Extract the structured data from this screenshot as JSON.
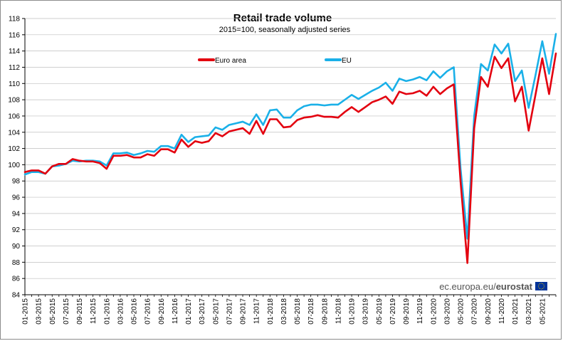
{
  "chart_data": {
    "type": "line",
    "title": "Retail trade volume",
    "subtitle": "2015=100, seasonally adjusted series",
    "xlabel": "",
    "ylabel": "",
    "ylim": [
      84,
      118
    ],
    "yticks": [
      84,
      86,
      88,
      90,
      92,
      94,
      96,
      98,
      100,
      102,
      104,
      106,
      108,
      110,
      112,
      114,
      116,
      118
    ],
    "tick_labels": [
      "01-2015",
      "03-2015",
      "05-2015",
      "07-2015",
      "09-2015",
      "11-2015",
      "01-2016",
      "03-2016",
      "05-2016",
      "07-2016",
      "09-2016",
      "11-2016",
      "01-2017",
      "03-2017",
      "05-2017",
      "07-2017",
      "09-2017",
      "11-2017",
      "01-2018",
      "03-2018",
      "05-2018",
      "07-2018",
      "09-2018",
      "11-2018",
      "01-2019",
      "03-2019",
      "05-2019",
      "07-2019",
      "09-2019",
      "11-2019",
      "01-2020",
      "03-2020",
      "05-2020",
      "07-2020",
      "09-2020",
      "11-2020",
      "01-2021",
      "03-2021",
      "05-2021"
    ],
    "legend_position": "top-center",
    "grid": true,
    "series": [
      {
        "name": "Euro area",
        "color": "#e3000f",
        "values": [
          99.1,
          99.3,
          99.3,
          98.9,
          99.8,
          100.1,
          100.1,
          100.7,
          100.5,
          100.4,
          100.4,
          100.2,
          99.5,
          101.1,
          101.1,
          101.2,
          100.9,
          100.9,
          101.3,
          101.1,
          101.9,
          101.9,
          101.5,
          103.1,
          102.2,
          102.9,
          102.7,
          102.9,
          103.9,
          103.5,
          104.1,
          104.3,
          104.5,
          103.8,
          105.4,
          103.8,
          105.6,
          105.6,
          104.6,
          104.7,
          105.5,
          105.8,
          105.9,
          106.1,
          105.9,
          105.9,
          105.8,
          106.5,
          107.1,
          106.5,
          107.1,
          107.7,
          108.0,
          108.4,
          107.5,
          109.0,
          108.7,
          108.8,
          109.1,
          108.5,
          109.6,
          108.7,
          109.4,
          109.9,
          97.9,
          87.9,
          104.5,
          110.8,
          109.6,
          113.3,
          111.9,
          113.1,
          107.8,
          109.6,
          104.2,
          108.6,
          113.1,
          108.7,
          113.7
        ]
      },
      {
        "name": "EU",
        "color": "#1ab0e8",
        "values": [
          98.8,
          99.1,
          99.1,
          98.9,
          99.8,
          99.9,
          100.1,
          100.5,
          100.4,
          100.5,
          100.5,
          100.4,
          99.9,
          101.4,
          101.4,
          101.5,
          101.2,
          101.4,
          101.7,
          101.6,
          102.3,
          102.3,
          102.0,
          103.7,
          102.8,
          103.4,
          103.5,
          103.6,
          104.6,
          104.3,
          104.9,
          105.1,
          105.3,
          104.9,
          106.2,
          104.9,
          106.7,
          106.8,
          105.8,
          105.8,
          106.7,
          107.2,
          107.4,
          107.4,
          107.3,
          107.4,
          107.4,
          108.0,
          108.6,
          108.1,
          108.6,
          109.1,
          109.5,
          110.1,
          109.1,
          110.6,
          110.3,
          110.5,
          110.8,
          110.4,
          111.5,
          110.7,
          111.5,
          112.0,
          99.5,
          90.9,
          106.0,
          112.4,
          111.6,
          114.8,
          113.7,
          114.9,
          110.3,
          111.6,
          107.0,
          111.0,
          115.2,
          111.2,
          116.1
        ]
      }
    ]
  },
  "source": {
    "prefix": "ec.europa.eu/",
    "brand": "eurostat",
    "flag_color": "#003399",
    "star_color": "#ffcc00"
  }
}
